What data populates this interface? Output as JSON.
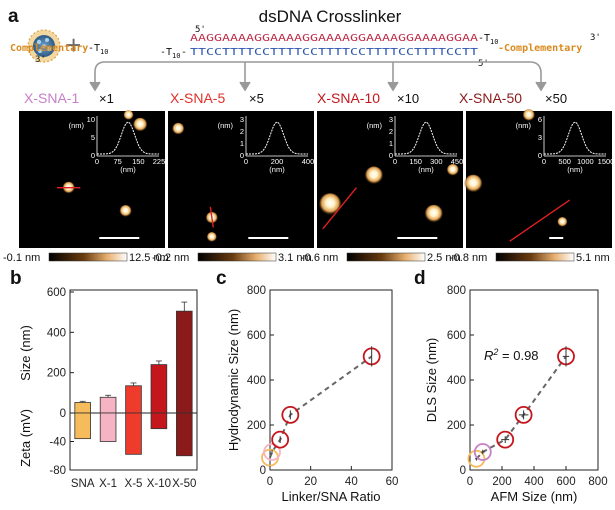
{
  "panel_a": {
    "letter": "a",
    "title": "dsDNA Crosslinker",
    "strand_top": {
      "prime_left": "5'",
      "prime_right": "3'",
      "left_label": "Complementary",
      "left_spacer": "-T",
      "left_spacer_sub": "10",
      "left_dash": "-",
      "sequence": "AAGGAAAAGGAAAAGGAAAAGGAAAAGGAAAAGGAA",
      "right_spacer": "-T",
      "right_spacer_sub": "10",
      "right_label": "-Complementary"
    },
    "strand_bottom": {
      "prime_left": "3'",
      "prime_right": "5'",
      "left_spacer": "-T",
      "left_spacer_sub": "10",
      "left_dash": "-",
      "sequence": "TTCCTTTTCCTTTTCCTTTTCCTTTTCCTTTTCCTT"
    },
    "plus": "+",
    "samples": [
      {
        "name": "X-SNA-1",
        "mult": "×1",
        "color": "#c77fc7",
        "inset": {
          "y_unit": "(nm)",
          "x_unit": "(nm)",
          "y_ticks": [
            "0",
            "5",
            "10"
          ],
          "x_ticks": [
            "0",
            "75",
            "150",
            "225"
          ]
        },
        "cbar": {
          "min": "-0.1 nm",
          "max": "12.5 nm"
        }
      },
      {
        "name": "X-SNA-5",
        "mult": "×5",
        "color": "#e0302a",
        "inset": {
          "y_unit": "(nm)",
          "x_unit": "(nm)",
          "y_ticks": [
            "0",
            "1",
            "2",
            "3"
          ],
          "x_ticks": [
            "0",
            "200",
            "400"
          ]
        },
        "cbar": {
          "min": "-0.2 nm",
          "max": "3.1 nm"
        }
      },
      {
        "name": "X-SNA-10",
        "mult": "×10",
        "color": "#c4161c",
        "inset": {
          "y_unit": "(nm)",
          "x_unit": "(nm)",
          "y_ticks": [
            "0",
            "1",
            "2",
            "3"
          ],
          "x_ticks": [
            "0",
            "150",
            "300",
            "450"
          ]
        },
        "cbar": {
          "min": "-0.6 nm",
          "max": "2.5 nm"
        }
      },
      {
        "name": "X-SNA-50",
        "mult": "×50",
        "color": "#8b1a1a",
        "inset": {
          "y_unit": "(nm)",
          "x_unit": "(nm)",
          "y_ticks": [
            "0",
            "3",
            "6"
          ],
          "x_ticks": [
            "0",
            "500",
            "1000",
            "1500"
          ]
        },
        "cbar": {
          "min": "-0.8 nm",
          "max": "5.1 nm"
        }
      }
    ]
  },
  "chart_data": [
    {
      "panel": "b",
      "type": "bar",
      "categories": [
        "SNA",
        "X-1",
        "X-5",
        "X-10",
        "X-50"
      ],
      "series": [
        {
          "name": "Size",
          "values": [
            52,
            78,
            135,
            240,
            505
          ],
          "errors": [
            6,
            10,
            14,
            18,
            45
          ]
        },
        {
          "name": "Zeta",
          "values": [
            -36,
            -40,
            -58,
            -22,
            -60
          ]
        }
      ],
      "colors": [
        "#f6bb5a",
        "#f6b3c4",
        "#ee3b2b",
        "#c4161c",
        "#8b1a1a"
      ],
      "ylabel_top": "Size (nm)",
      "ylabel_bottom": "Zeta (mV)",
      "size_ticks": [
        "200",
        "400",
        "600"
      ],
      "size_range": [
        0,
        600
      ],
      "zeta_ticks": [
        "0",
        "-40",
        "-80"
      ],
      "zeta_range": [
        -80,
        0
      ],
      "grid": false
    },
    {
      "panel": "c",
      "type": "scatter",
      "xlabel": "Linker/SNA Ratio",
      "ylabel": "Hydrodynamic Size (nm)",
      "xlim": [
        0,
        60
      ],
      "ylim": [
        0,
        800
      ],
      "x_ticks": [
        "0",
        "20",
        "40",
        "60"
      ],
      "y_ticks": [
        "0",
        "200",
        "400",
        "600",
        "800"
      ],
      "points": [
        {
          "x": 0,
          "y": 55,
          "ex": 0,
          "ey": 8,
          "color": "#f6bb5a"
        },
        {
          "x": 1,
          "y": 80,
          "ex": 0,
          "ey": 10,
          "color": "#f6b3c4"
        },
        {
          "x": 5,
          "y": 135,
          "ex": 0,
          "ey": 15,
          "color": "#c4161c"
        },
        {
          "x": 10,
          "y": 245,
          "ex": 0,
          "ey": 20,
          "color": "#c4161c"
        },
        {
          "x": 50,
          "y": 505,
          "ex": 0,
          "ey": 45,
          "color": "#c4161c"
        }
      ],
      "fit": "dashed",
      "grid": false
    },
    {
      "panel": "d",
      "type": "scatter",
      "xlabel": "AFM Size (nm)",
      "ylabel": "DLS Size (nm)",
      "annotation": "= 0.98",
      "annotation_var": "R",
      "annotation_sup": "2",
      "xlim": [
        0,
        800
      ],
      "ylim": [
        0,
        800
      ],
      "x_ticks": [
        "0",
        "200",
        "400",
        "600",
        "800"
      ],
      "y_ticks": [
        "0",
        "200",
        "400",
        "600",
        "800"
      ],
      "points": [
        {
          "x": 40,
          "y": 50,
          "ex": 8,
          "ey": 8,
          "color": "#f6bb5a"
        },
        {
          "x": 80,
          "y": 80,
          "ex": 12,
          "ey": 10,
          "color": "#c77fc7"
        },
        {
          "x": 220,
          "y": 135,
          "ex": 25,
          "ey": 15,
          "color": "#c4161c"
        },
        {
          "x": 335,
          "y": 245,
          "ex": 30,
          "ey": 20,
          "color": "#c4161c"
        },
        {
          "x": 600,
          "y": 505,
          "ex": 20,
          "ey": 45,
          "color": "#c4161c"
        }
      ],
      "fit": "dashed",
      "grid": false
    }
  ],
  "letters": {
    "b": "b",
    "c": "c",
    "d": "d"
  }
}
